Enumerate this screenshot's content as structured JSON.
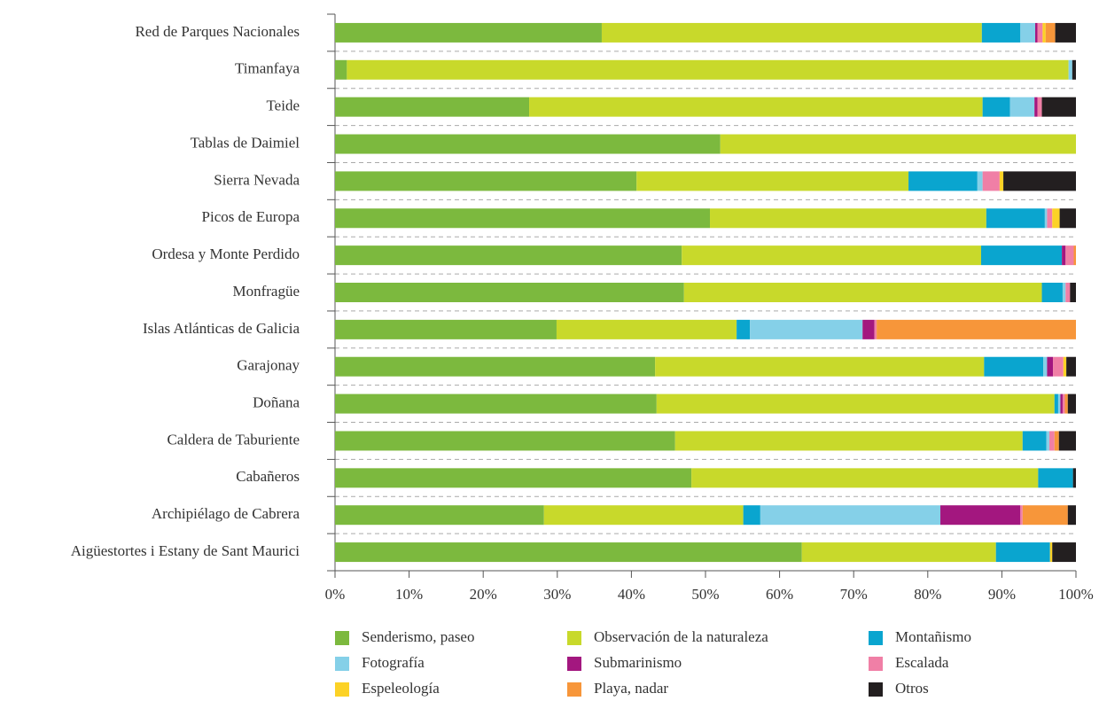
{
  "chart_data": {
    "type": "stacked_barh",
    "categories": [
      "Red de Parques Nacionales",
      "Timanfaya",
      "Teide",
      "Tablas de Daimiel",
      "Sierra Nevada",
      "Picos de Europa",
      "Ordesa y Monte Perdido",
      "Monfragüe",
      "Islas Atlánticas de Galicia",
      "Garajonay",
      "Doñana",
      "Caldera de Taburiente",
      "Cabañeros",
      "Archipiélago de Cabrera",
      "Aigüestortes i Estany de Sant Maurici"
    ],
    "series": [
      {
        "name": "Senderismo, paseo",
        "color": "#7cb93e",
        "values": [
          36.0,
          1.6,
          26.2,
          52.0,
          40.7,
          50.6,
          46.8,
          47.1,
          29.9,
          43.2,
          43.4,
          45.9,
          48.1,
          28.2,
          63.0
        ]
      },
      {
        "name": "Observación de la naturaleza",
        "color": "#c8d92b",
        "values": [
          51.3,
          97.4,
          61.2,
          48.0,
          36.7,
          37.3,
          40.4,
          48.3,
          24.3,
          44.4,
          53.7,
          46.9,
          46.8,
          26.9,
          26.2
        ]
      },
      {
        "name": "Montañismo",
        "color": "#0aa5cf",
        "values": [
          5.2,
          0,
          3.7,
          0,
          9.3,
          7.9,
          10.9,
          2.8,
          1.8,
          8.0,
          0.5,
          3.2,
          4.7,
          2.3,
          7.3
        ]
      },
      {
        "name": "Fotografía",
        "color": "#85d0e8",
        "values": [
          2.0,
          0.5,
          3.3,
          0,
          0.7,
          0.3,
          0,
          0.4,
          15.2,
          0.5,
          0.3,
          0.4,
          0,
          24.3,
          0
        ]
      },
      {
        "name": "Submarinismo",
        "color": "#a3177f",
        "values": [
          0.3,
          0,
          0.4,
          0,
          0,
          0,
          0.5,
          0,
          1.6,
          0.8,
          0.3,
          0,
          0,
          10.8,
          0
        ]
      },
      {
        "name": "Escalada",
        "color": "#f07fa6",
        "values": [
          0.7,
          0,
          0.6,
          0,
          2.3,
          0.7,
          1.1,
          0.6,
          0.3,
          1.4,
          0.3,
          0.7,
          0,
          0.3,
          0
        ]
      },
      {
        "name": "Espeleología",
        "color": "#fcd226",
        "values": [
          0.4,
          0,
          0,
          0,
          0.5,
          1.0,
          0,
          0,
          0,
          0.4,
          0,
          0,
          0,
          0,
          0.3
        ]
      },
      {
        "name": "Playa, nadar",
        "color": "#f7963a",
        "values": [
          1.3,
          0,
          0,
          0,
          0,
          0,
          0.3,
          0,
          26.9,
          0,
          0.4,
          0.6,
          0,
          6.1,
          0
        ]
      },
      {
        "name": "Otros",
        "color": "#231f20",
        "values": [
          2.8,
          0.5,
          4.6,
          0,
          9.8,
          2.2,
          0,
          0.8,
          0,
          1.3,
          1.1,
          2.3,
          0.4,
          1.1,
          3.2
        ]
      }
    ],
    "xlim": [
      0,
      100
    ],
    "xticks": [
      {
        "value": 0,
        "label": "0%"
      },
      {
        "value": 10,
        "label": "10%"
      },
      {
        "value": 20,
        "label": "20%"
      },
      {
        "value": 30,
        "label": "30%"
      },
      {
        "value": 40,
        "label": "40%"
      },
      {
        "value": 50,
        "label": "50%"
      },
      {
        "value": 60,
        "label": "60%"
      },
      {
        "value": 70,
        "label": "70%"
      },
      {
        "value": 80,
        "label": "80%"
      },
      {
        "value": 90,
        "label": "90%"
      },
      {
        "value": 100,
        "label": "100%"
      }
    ],
    "grid": true
  }
}
